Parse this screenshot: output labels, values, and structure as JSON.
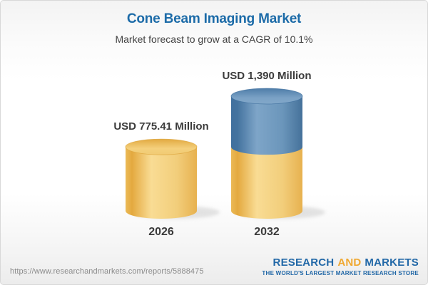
{
  "header": {
    "title": "Cone Beam Imaging Market",
    "subtitle": "Market forecast to grow at a CAGR of 10.1%"
  },
  "chart_data": {
    "type": "bar",
    "variant": "3d-cylinder-stacked",
    "title": "Cone Beam Imaging Market",
    "subtitle": "Market forecast to grow at a CAGR of 10.1%",
    "cagr": "10.1%",
    "unit": "USD Million",
    "categories": [
      "2026",
      "2032"
    ],
    "values": [
      775.41,
      1390
    ],
    "ylim": [
      0,
      1390
    ],
    "grid": false,
    "legend": false,
    "bars": [
      {
        "category": "2026",
        "value": 775.41,
        "label": "USD 775.41 Million",
        "segments": [
          {
            "value": 775.41,
            "color": "gold"
          }
        ]
      },
      {
        "category": "2032",
        "value": 1390,
        "label": "USD 1,390 Million",
        "segments": [
          {
            "value": 775.41,
            "color": "gold"
          },
          {
            "value": 614.59,
            "color": "blue"
          }
        ]
      }
    ],
    "colors": {
      "gold": "#F3CF7D",
      "blue": "#5F8CB5",
      "label_text": "#3B3B3B"
    }
  },
  "footer": {
    "url": "https://www.researchandmarkets.com/reports/5888475",
    "logo": {
      "research": "RESEARCH",
      "and": "AND",
      "markets": "MARKETS",
      "tagline": "THE WORLD'S LARGEST MARKET RESEARCH STORE",
      "blue": "#2268A7",
      "gold": "#F0A830"
    }
  },
  "theme": {
    "title_color": "#1C6BA8",
    "subtitle_color": "#424242"
  }
}
